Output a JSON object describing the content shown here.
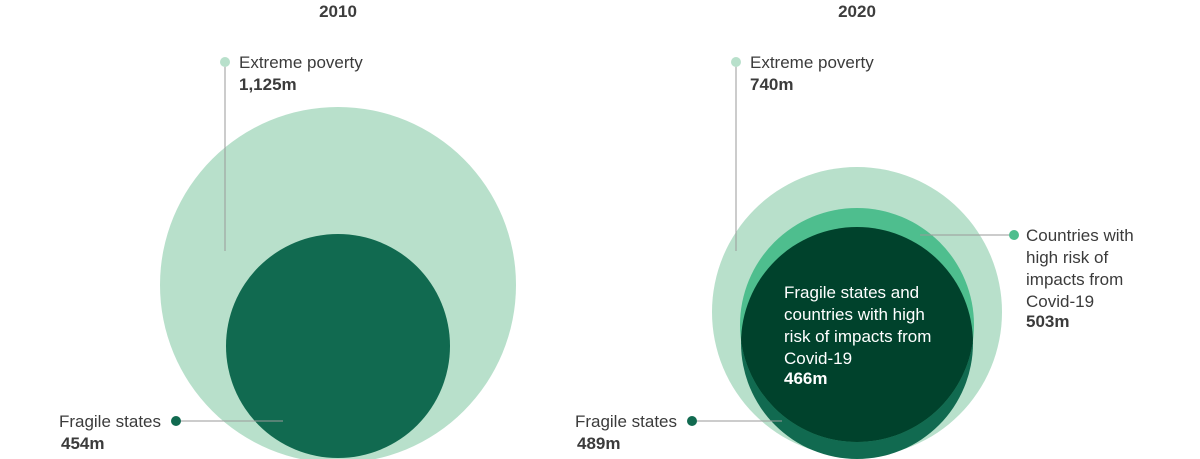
{
  "colors": {
    "extreme_poverty": "#b8e0cb",
    "fragile_states": "#116a50",
    "covid_risk": "#4ebe8e",
    "overlap": "#00422c"
  },
  "panels": [
    {
      "title": "2010",
      "extreme_poverty": {
        "label": "Extreme poverty",
        "value": "1,125m"
      },
      "fragile_states": {
        "label": "Fragile states",
        "value": "454m"
      }
    },
    {
      "title": "2020",
      "extreme_poverty": {
        "label": "Extreme poverty",
        "value": "740m"
      },
      "covid_risk": {
        "label_lines": [
          "Countries with",
          "high risk of",
          "impacts from",
          "Covid-19"
        ],
        "value": "503m"
      },
      "overlap": {
        "label_lines": [
          "Fragile states and",
          "countries with high",
          "risk of impacts from",
          "Covid-19"
        ],
        "value": "466m"
      },
      "fragile_states": {
        "label": "Fragile states",
        "value": "489m"
      }
    }
  ]
}
